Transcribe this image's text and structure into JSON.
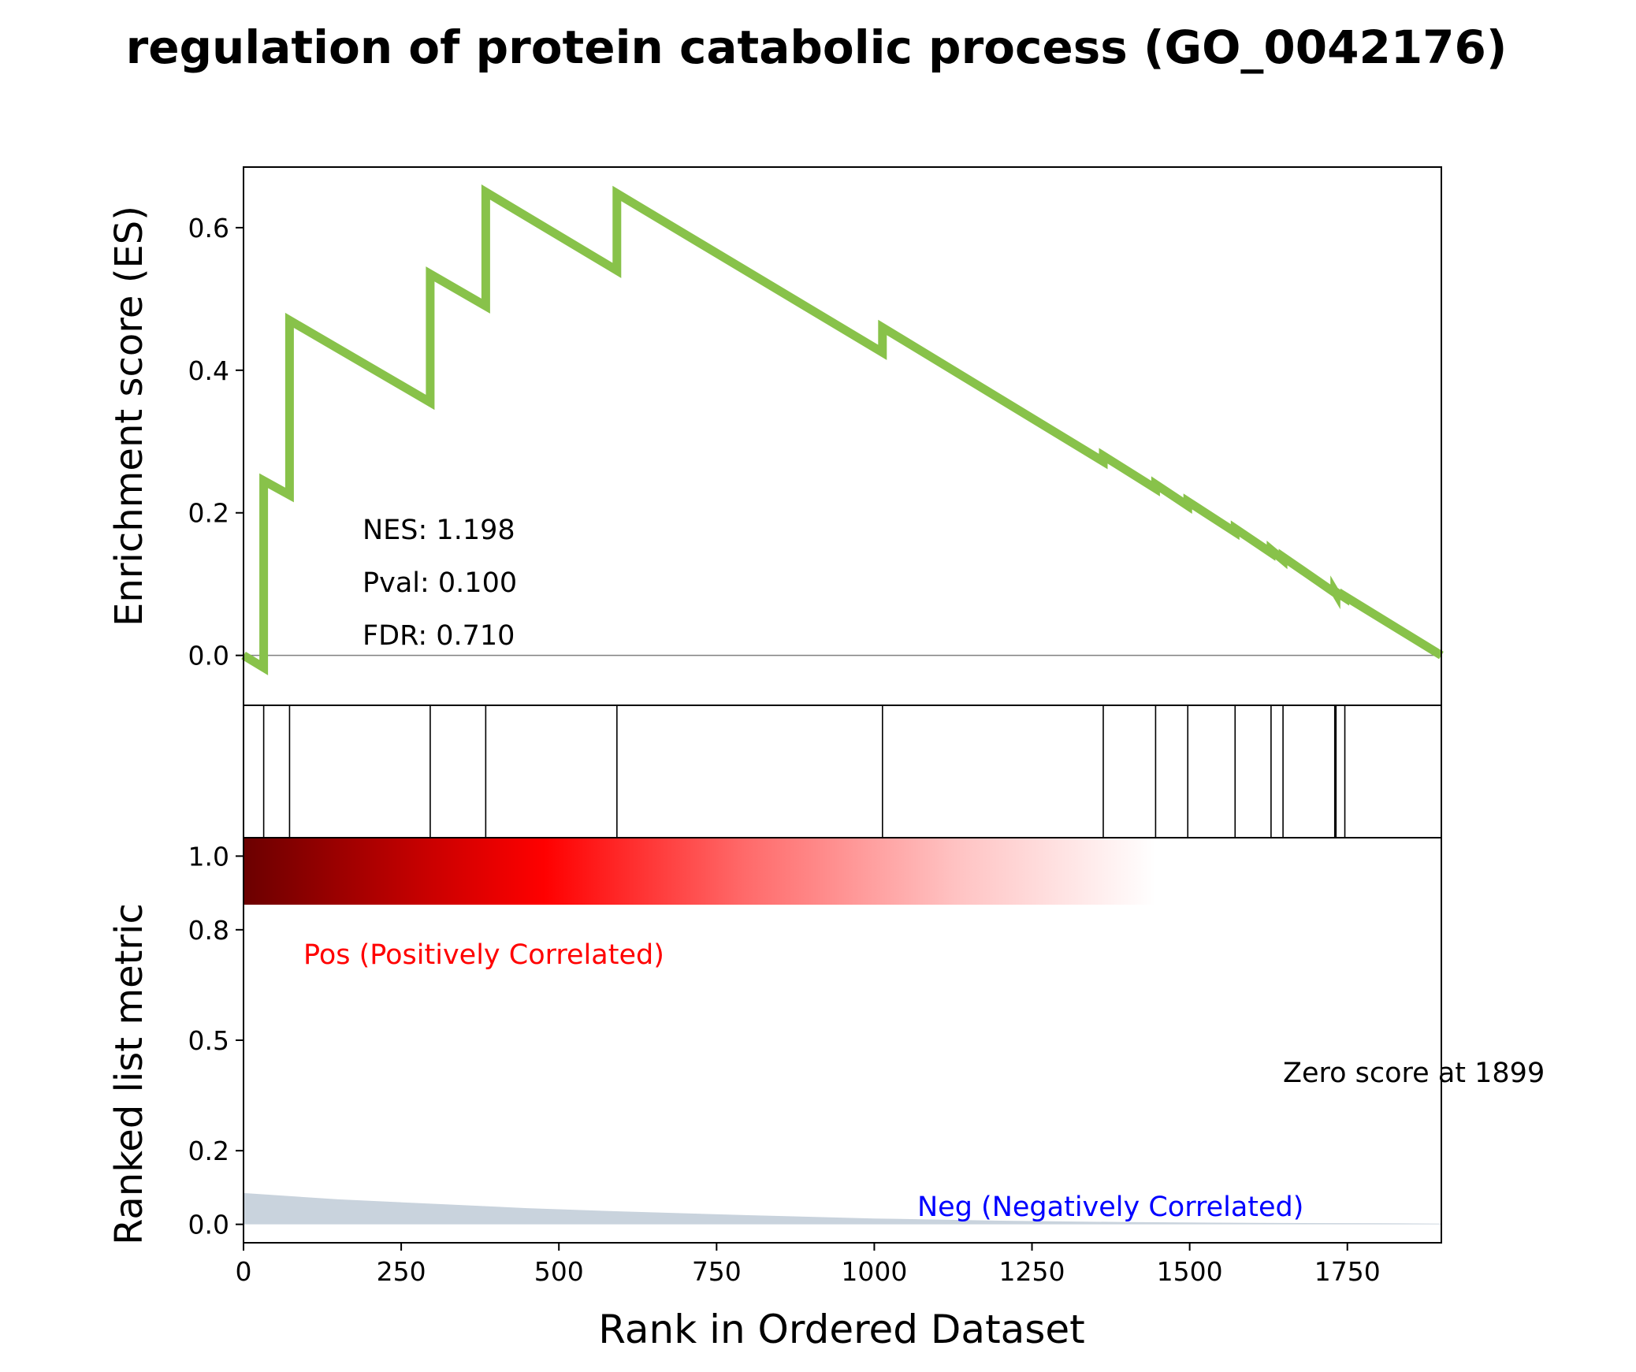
{
  "title": "regulation of protein catabolic process (GO_0042176)",
  "chart_data": {
    "type": "line",
    "x_axis": {
      "label": "Rank in Ordered Dataset",
      "range": [
        0,
        1899
      ],
      "ticks": [
        0,
        250,
        500,
        750,
        1000,
        1250,
        1500,
        1750
      ],
      "tick_labels": [
        "0",
        "250",
        "500",
        "750",
        "1000",
        "1250",
        "1500",
        "1750"
      ]
    },
    "es_panel": {
      "ylabel": "Enrichment score (ES)",
      "ylim": [
        -0.07,
        0.685
      ],
      "yticks": [
        0.0,
        0.2,
        0.4,
        0.6
      ],
      "ytick_labels": [
        "0.0",
        "0.2",
        "0.4",
        "0.6"
      ],
      "line_color": "#88c24a",
      "baseline_color": "#808080",
      "series": {
        "name": "",
        "x": [
          0,
          32,
          32,
          73,
          73,
          296,
          296,
          384,
          384,
          592,
          592,
          1013,
          1013,
          1363,
          1363,
          1446,
          1446,
          1497,
          1497,
          1572,
          1572,
          1629,
          1629,
          1648,
          1648,
          1730,
          1730,
          1732,
          1732,
          1746,
          1746,
          1899
        ],
        "y": [
          0.0,
          -0.017,
          0.245,
          0.225,
          0.47,
          0.355,
          0.535,
          0.49,
          0.65,
          0.54,
          0.648,
          0.425,
          0.46,
          0.272,
          0.28,
          0.234,
          0.24,
          0.21,
          0.216,
          0.173,
          0.178,
          0.144,
          0.148,
          0.134,
          0.138,
          0.088,
          0.09,
          0.087,
          0.089,
          0.081,
          0.083,
          0.0
        ]
      },
      "annotations": [
        "NES: 1.198",
        "Pval: 0.100",
        "FDR: 0.710"
      ]
    },
    "hits_panel": {
      "hit_ranks": [
        32,
        73,
        296,
        384,
        592,
        1013,
        1363,
        1446,
        1497,
        1572,
        1629,
        1648,
        1730,
        1732,
        1746,
        1899
      ]
    },
    "rank_panel": {
      "ylabel": "Ranked list metric",
      "ylim": [
        -0.05,
        1.05
      ],
      "yticks": [
        0.0,
        0.2,
        0.5,
        0.8,
        1.0
      ],
      "ytick_labels": [
        "0.0",
        "0.2",
        "0.5",
        "0.8",
        "1.0"
      ],
      "fill_color": "#c9d3dd",
      "metric": {
        "x": [
          0,
          150,
          300,
          450,
          600,
          800,
          1000,
          1200,
          1400,
          1600,
          1800,
          1899
        ],
        "y": [
          0.085,
          0.068,
          0.056,
          0.044,
          0.035,
          0.025,
          0.016,
          0.01,
          0.006,
          0.004,
          0.003,
          0.002
        ]
      },
      "gradient_end_rank": 1446,
      "pos_label": "Pos (Positively Correlated)",
      "neg_label": "Neg (Negatively Correlated)",
      "zero_label": "Zero score at 1899"
    }
  }
}
